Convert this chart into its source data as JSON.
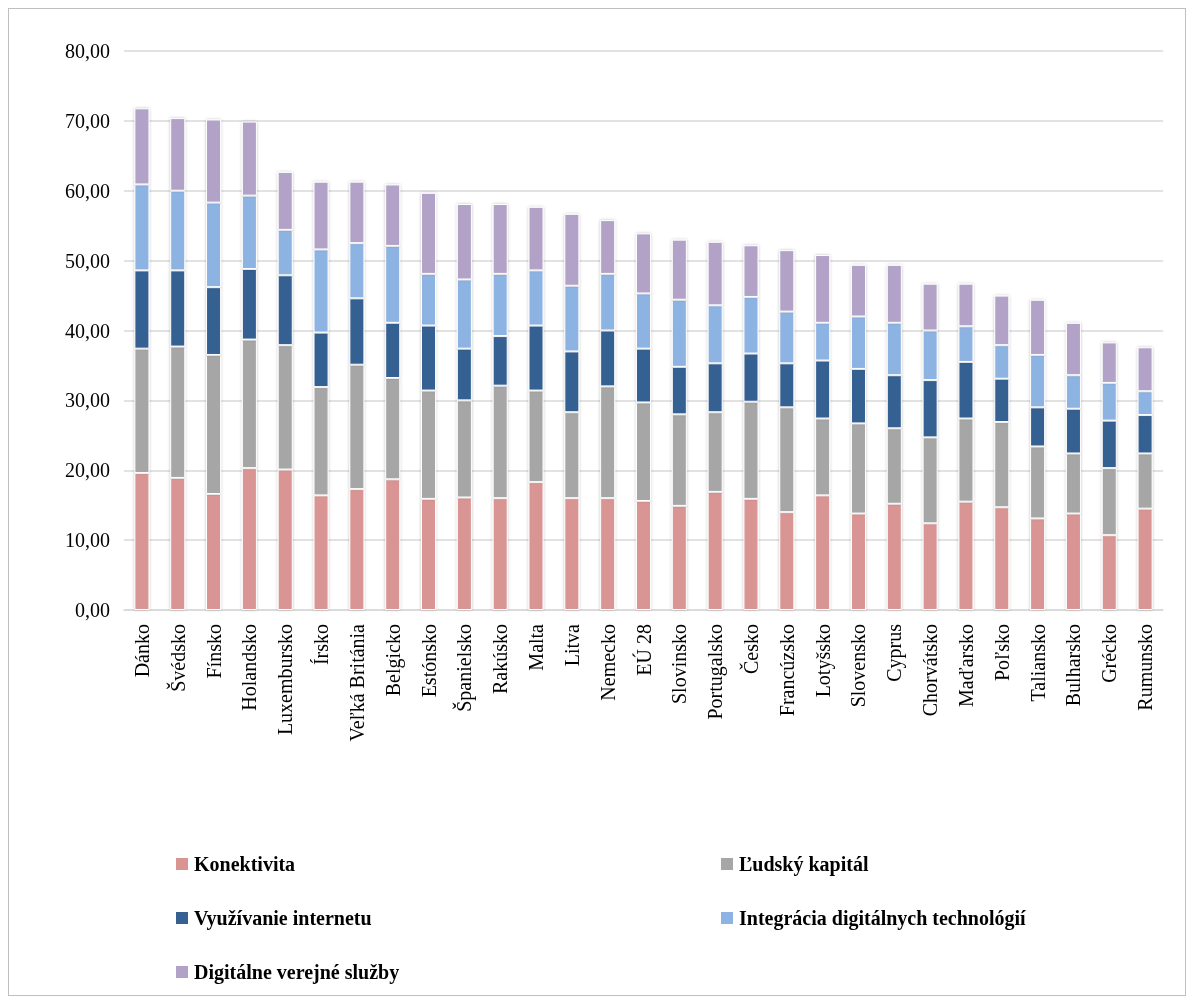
{
  "chart_data": {
    "type": "bar",
    "stacked": true,
    "categories": [
      "Dánko",
      "Švédsko",
      "Fínsko",
      "Holandsko",
      "Luxembursko",
      "Írsko",
      "Veľká Británia",
      "Belgicko",
      "Estónsko",
      "Španielsko",
      "Rakúsko",
      "Malta",
      "Litva",
      "Nemecko",
      "EÚ 28",
      "Slovinsko",
      "Portugalsko",
      "Česko",
      "Francúzsko",
      "Lotyšsko",
      "Slovensko",
      "Cyprus",
      "Chorvátsko",
      "Maďarsko",
      "Poľsko",
      "Taliansko",
      "Bulharsko",
      "Grécko",
      "Rumunsko"
    ],
    "series": [
      {
        "name": "Konektivita",
        "color": "#d99594",
        "values": [
          19.6,
          18.9,
          16.6,
          20.3,
          20.1,
          16.4,
          17.3,
          18.7,
          15.9,
          16.1,
          16.0,
          18.3,
          16.0,
          16.0,
          15.6,
          14.9,
          16.9,
          15.9,
          14.0,
          16.4,
          13.8,
          15.2,
          12.4,
          15.5,
          14.7,
          13.1,
          13.8,
          10.7,
          14.5
        ]
      },
      {
        "name": "Ľudský kapitál",
        "color": "#a6a6a6",
        "values": [
          17.8,
          18.8,
          19.9,
          18.4,
          17.8,
          15.5,
          17.8,
          14.5,
          15.5,
          13.9,
          16.1,
          13.1,
          12.3,
          16.0,
          14.1,
          13.1,
          11.4,
          13.9,
          15.0,
          11.0,
          12.9,
          10.8,
          12.3,
          11.9,
          12.2,
          10.3,
          8.6,
          9.6,
          7.9
        ]
      },
      {
        "name": "Využívanie internetu",
        "color": "#366092",
        "values": [
          11.2,
          10.9,
          9.7,
          10.1,
          10.0,
          7.8,
          9.5,
          7.9,
          9.3,
          7.4,
          7.1,
          9.3,
          8.7,
          8.0,
          7.7,
          6.8,
          7.0,
          6.9,
          6.3,
          8.3,
          7.8,
          7.6,
          8.2,
          8.1,
          6.2,
          5.6,
          6.4,
          6.8,
          5.5
        ]
      },
      {
        "name": "Integrácia digitálnych technológií",
        "color": "#8db3e2",
        "values": [
          12.3,
          11.4,
          12.1,
          10.5,
          6.5,
          11.9,
          7.9,
          11.0,
          7.4,
          9.9,
          8.9,
          7.9,
          9.4,
          8.1,
          7.9,
          9.6,
          8.3,
          8.1,
          7.4,
          5.4,
          7.5,
          7.5,
          7.1,
          5.1,
          4.8,
          7.5,
          4.8,
          5.4,
          3.4
        ]
      },
      {
        "name": "Digitálne verejné služby",
        "color": "#b2a2c7",
        "values": [
          10.9,
          10.4,
          11.9,
          10.6,
          8.3,
          9.7,
          8.8,
          8.8,
          11.6,
          10.8,
          10.0,
          9.1,
          10.3,
          7.7,
          8.6,
          8.6,
          9.1,
          7.4,
          8.8,
          9.7,
          7.4,
          8.3,
          6.7,
          6.1,
          7.1,
          7.9,
          7.5,
          5.8,
          6.3
        ]
      }
    ],
    "ylim": [
      0,
      80
    ],
    "yticks": [
      {
        "value": 0,
        "label": "0,00"
      },
      {
        "value": 10,
        "label": "10,00"
      },
      {
        "value": 20,
        "label": "20,00"
      },
      {
        "value": 30,
        "label": "30,00"
      },
      {
        "value": 40,
        "label": "40,00"
      },
      {
        "value": 50,
        "label": "50,00"
      },
      {
        "value": 60,
        "label": "60,00"
      },
      {
        "value": 70,
        "label": "70,00"
      },
      {
        "value": 80,
        "label": "80,00"
      }
    ],
    "grid": "y",
    "legend": "bottom"
  }
}
